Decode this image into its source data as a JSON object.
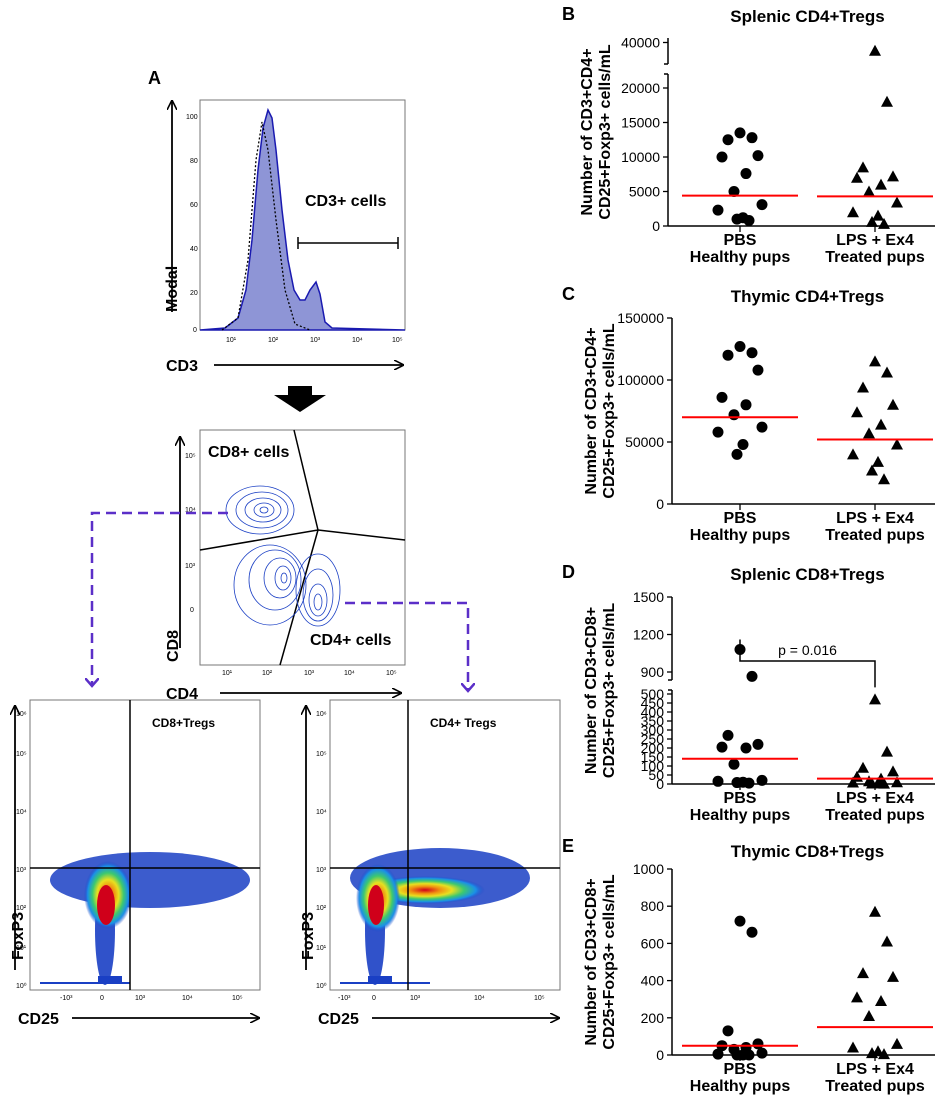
{
  "panel_a": {
    "label": "A",
    "histogram": {
      "xlabel": "CD3",
      "ylabel": "Modal",
      "gate_label": "CD3+ cells",
      "yticks": [
        "100",
        "80",
        "60",
        "40",
        "20",
        "0"
      ],
      "xticks": [
        "10¹",
        "10²",
        "10³",
        "10⁴",
        "10⁵"
      ]
    },
    "contour": {
      "xlabel": "CD4",
      "ylabel": "CD8",
      "gate_cd8": "CD8+ cells",
      "gate_cd4": "CD4+ cells",
      "xticks": [
        "10¹",
        "10²",
        "10³",
        "10⁴",
        "10⁵"
      ],
      "yticks": [
        "10⁵",
        "10⁴",
        "10³",
        "0"
      ]
    },
    "density_cd8": {
      "title": "CD8+Tregs",
      "xlabel": "CD25",
      "ylabel": "FoxP3",
      "xticks": [
        "-10³",
        "0",
        "10³",
        "10⁴",
        "10⁵"
      ],
      "yticks": [
        "10⁶",
        "10⁵",
        "10⁴",
        "10³",
        "10²",
        "10¹",
        "10⁰"
      ]
    },
    "density_cd4": {
      "title": "CD4+ Tregs",
      "xlabel": "CD25",
      "ylabel": "FoxP3",
      "xticks": [
        "-10³",
        "0",
        "10³",
        "10⁴",
        "10⁵"
      ],
      "yticks": [
        "10⁶",
        "10⁵",
        "10⁴",
        "10³",
        "10²",
        "10¹",
        "10⁰"
      ]
    }
  },
  "colors": {
    "bar": "#ff0000",
    "flow": "#1a3fc4",
    "hist_fill": "#8e95d6",
    "arrow": "#5b2fc8"
  },
  "chart_data": [
    {
      "label": "B",
      "type": "scatter",
      "title": "Splenic CD4+Tregs",
      "ylabel_line1": "Number of CD3+CD4+",
      "ylabel_line2": "CD25+Foxp3+ cells/mL",
      "categories": [
        {
          "line1": "PBS",
          "line2": "Healthy pups"
        },
        {
          "line1": "LPS + Ex4",
          "line2": "Treated pups"
        }
      ],
      "ylim": [
        0,
        40000
      ],
      "axis_break": true,
      "yticks": [
        0,
        5000,
        10000,
        15000,
        20000,
        40000
      ],
      "series": [
        {
          "name": "PBS",
          "marker": "circle",
          "values": [
            13500,
            12800,
            12500,
            10200,
            10000,
            7600,
            5000,
            3100,
            2300,
            1200,
            1000,
            800
          ]
        },
        {
          "name": "LPS + Ex4",
          "marker": "triangle",
          "values": [
            34000,
            18000,
            8500,
            7200,
            7000,
            6000,
            5000,
            3400,
            2000,
            1500,
            600,
            300
          ]
        }
      ],
      "means": [
        4400,
        4300
      ]
    },
    {
      "label": "C",
      "type": "scatter",
      "title": "Thymic CD4+Tregs",
      "ylabel_line1": "Number of CD3+CD4+",
      "ylabel_line2": "CD25+Foxp3+ cells/mL",
      "categories": [
        {
          "line1": "PBS",
          "line2": "Healthy pups"
        },
        {
          "line1": "LPS + Ex4",
          "line2": "Treated pups"
        }
      ],
      "ylim": [
        0,
        150000
      ],
      "yticks": [
        0,
        50000,
        100000,
        150000
      ],
      "series": [
        {
          "name": "PBS",
          "marker": "circle",
          "values": [
            127000,
            122000,
            120000,
            108000,
            86000,
            80000,
            72000,
            62000,
            58000,
            48000,
            40000
          ]
        },
        {
          "name": "LPS + Ex4",
          "marker": "triangle",
          "values": [
            115000,
            106000,
            94000,
            80000,
            74000,
            64000,
            57000,
            48000,
            40000,
            34000,
            27000,
            20000
          ]
        }
      ],
      "means": [
        70000,
        52000
      ]
    },
    {
      "label": "D",
      "type": "scatter",
      "title": "Splenic CD8+Tregs",
      "ylabel_line1": "Number of CD3+CD8+",
      "ylabel_line2": "CD25+Foxp3+ cells/mL",
      "categories": [
        {
          "line1": "PBS",
          "line2": "Healthy pups"
        },
        {
          "line1": "LPS + Ex4",
          "line2": "Treated pups"
        }
      ],
      "ylim": [
        0,
        1500
      ],
      "axis_break": true,
      "yticks": [
        0,
        50,
        100,
        150,
        200,
        250,
        300,
        350,
        400,
        450,
        500,
        900,
        1200,
        1500
      ],
      "annotation": "p = 0.016",
      "series": [
        {
          "name": "PBS",
          "marker": "circle",
          "values": [
            1080,
            820,
            270,
            220,
            205,
            200,
            110,
            20,
            15,
            10,
            8,
            5
          ]
        },
        {
          "name": "LPS + Ex4",
          "marker": "triangle",
          "values": [
            470,
            180,
            90,
            70,
            40,
            30,
            15,
            10,
            8,
            5,
            3,
            2
          ]
        }
      ],
      "means": [
        140,
        30
      ]
    },
    {
      "label": "E",
      "type": "scatter",
      "title": "Thymic CD8+Tregs",
      "ylabel_line1": "Number of CD3+CD8+",
      "ylabel_line2": "CD25+Foxp3+ cells/mL",
      "categories": [
        {
          "line1": "PBS",
          "line2": "Healthy pups"
        },
        {
          "line1": "LPS + Ex4",
          "line2": "Treated pups"
        }
      ],
      "ylim": [
        0,
        1000
      ],
      "yticks": [
        0,
        200,
        400,
        600,
        800,
        1000
      ],
      "series": [
        {
          "name": "PBS",
          "marker": "circle",
          "values": [
            720,
            660,
            130,
            60,
            50,
            40,
            30,
            10,
            5,
            0,
            0,
            0
          ]
        },
        {
          "name": "LPS + Ex4",
          "marker": "triangle",
          "values": [
            770,
            610,
            440,
            420,
            310,
            290,
            210,
            60,
            40,
            20,
            10,
            5
          ]
        }
      ],
      "means": [
        50,
        150
      ]
    }
  ]
}
